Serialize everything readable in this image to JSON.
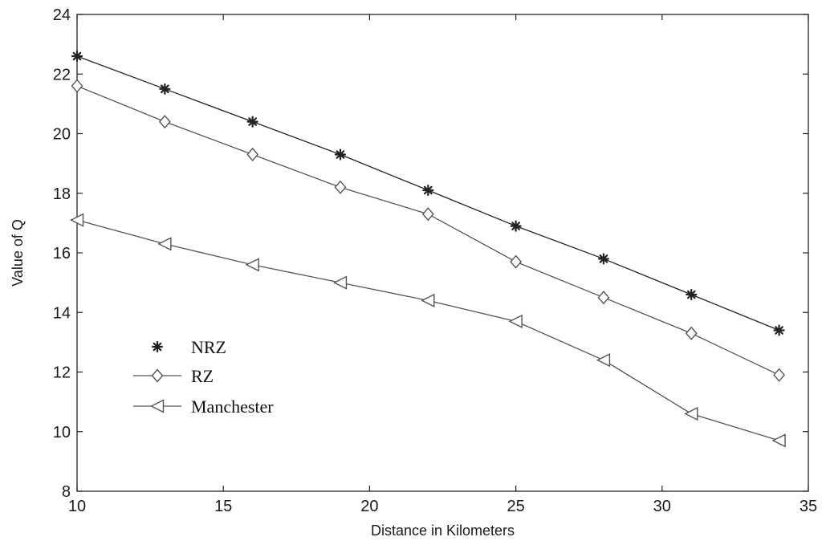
{
  "chart_data": {
    "type": "line",
    "title": "",
    "xlabel": "Distance in Kilometers",
    "ylabel": "Value of Q",
    "xlim": [
      10,
      35
    ],
    "ylim": [
      8,
      24
    ],
    "xticks": [
      "10",
      "15",
      "20",
      "25",
      "30",
      "35"
    ],
    "yticks": [
      "8",
      "10",
      "12",
      "14",
      "16",
      "18",
      "20",
      "22",
      "24"
    ],
    "grid": false,
    "legend_position": "lower-left",
    "x": [
      10,
      13,
      16,
      19,
      22,
      25,
      28,
      31,
      34
    ],
    "series": [
      {
        "name": "NRZ",
        "marker": "star",
        "color": "#222222",
        "values": [
          22.6,
          21.5,
          20.4,
          19.3,
          18.1,
          16.9,
          15.8,
          14.6,
          13.4
        ]
      },
      {
        "name": "RZ",
        "marker": "diamond",
        "color": "#555555",
        "values": [
          21.6,
          20.4,
          19.3,
          18.2,
          17.3,
          15.7,
          14.5,
          13.3,
          11.9
        ]
      },
      {
        "name": "Manchester",
        "marker": "triangle-left",
        "color": "#555555",
        "values": [
          17.1,
          16.3,
          15.6,
          15.0,
          14.4,
          13.7,
          12.4,
          10.6,
          9.7
        ]
      }
    ]
  }
}
